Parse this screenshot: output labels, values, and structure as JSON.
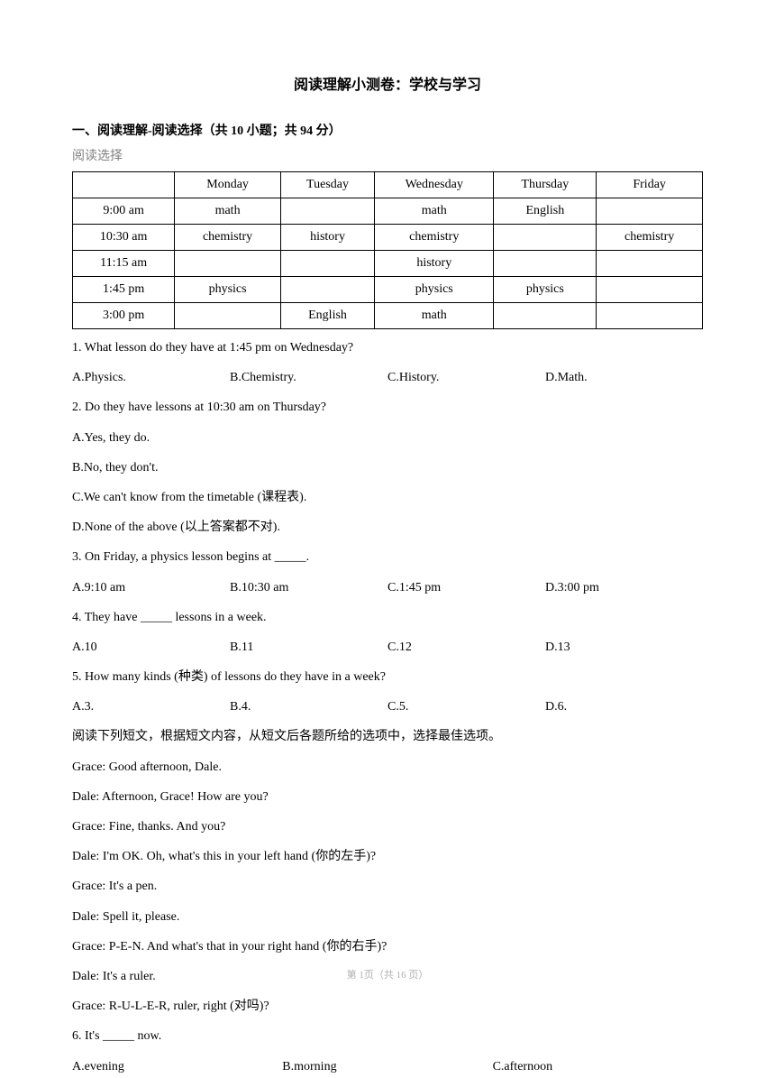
{
  "title": "阅读理解小测卷：学校与学习",
  "section_header": "一、阅读理解-阅读选择（共 10 小题；共 94 分）",
  "subsection": "阅读选择",
  "table": {
    "headers": [
      "",
      "Monday",
      "Tuesday",
      "Wednesday",
      "Thursday",
      "Friday"
    ],
    "rows": [
      [
        "9:00 am",
        "math",
        "",
        "math",
        "English",
        ""
      ],
      [
        "10:30 am",
        "chemistry",
        "history",
        "chemistry",
        "",
        "chemistry"
      ],
      [
        "11:15 am",
        "",
        "",
        "history",
        "",
        ""
      ],
      [
        "1:45 pm",
        "physics",
        "",
        "physics",
        "physics",
        ""
      ],
      [
        "3:00 pm",
        "",
        "English",
        "math",
        "",
        ""
      ]
    ]
  },
  "questions": {
    "q1": {
      "text": "1. What lesson do they have at 1:45 pm on Wednesday?",
      "A": "A.Physics.",
      "B": "B.Chemistry.",
      "C": "C.History.",
      "D": "D.Math."
    },
    "q2": {
      "text": "2. Do they have lessons at 10:30 am on Thursday?",
      "A": "A.Yes, they do.",
      "B": "B.No, they don't.",
      "C": "C.We can't know from the timetable (课程表).",
      "D": "D.None of the above (以上答案都不对)."
    },
    "q3": {
      "text": "3. On Friday, a physics lesson begins at _____.",
      "A": "A.9:10 am",
      "B": "B.10:30 am",
      "C": "C.1:45 pm",
      "D": "D.3:00 pm"
    },
    "q4": {
      "text": "4. They have _____ lessons in a week.",
      "A": "A.10",
      "B": "B.11",
      "C": "C.12",
      "D": "D.13"
    },
    "q5": {
      "text": "5. How many kinds (种类) of lessons do they have in a week?",
      "A": "A.3.",
      "B": "B.4.",
      "C": "C.5.",
      "D": "D.6."
    },
    "q6": {
      "text": "6. It's _____ now.",
      "A": "A.evening",
      "B": "B.morning",
      "C": "C.afternoon"
    }
  },
  "passage2_intro": "阅读下列短文，根据短文内容，从短文后各题所给的选项中，选择最佳选项。",
  "dialogue": {
    "l1": "Grace: Good afternoon, Dale.",
    "l2": "Dale: Afternoon, Grace! How are you?",
    "l3": "Grace: Fine, thanks. And you?",
    "l4": "Dale: I'm OK. Oh, what's this in your left hand (你的左手)?",
    "l5": "Grace: It's a pen.",
    "l6": "Dale: Spell it, please.",
    "l7": "Grace: P-E-N. And what's that in your right hand (你的右手)?",
    "l8": "Dale: It's a ruler.",
    "l9": "Grace: R-U-L-E-R, ruler, right (对吗)?"
  },
  "footer": "第 1页（共 16 页）"
}
